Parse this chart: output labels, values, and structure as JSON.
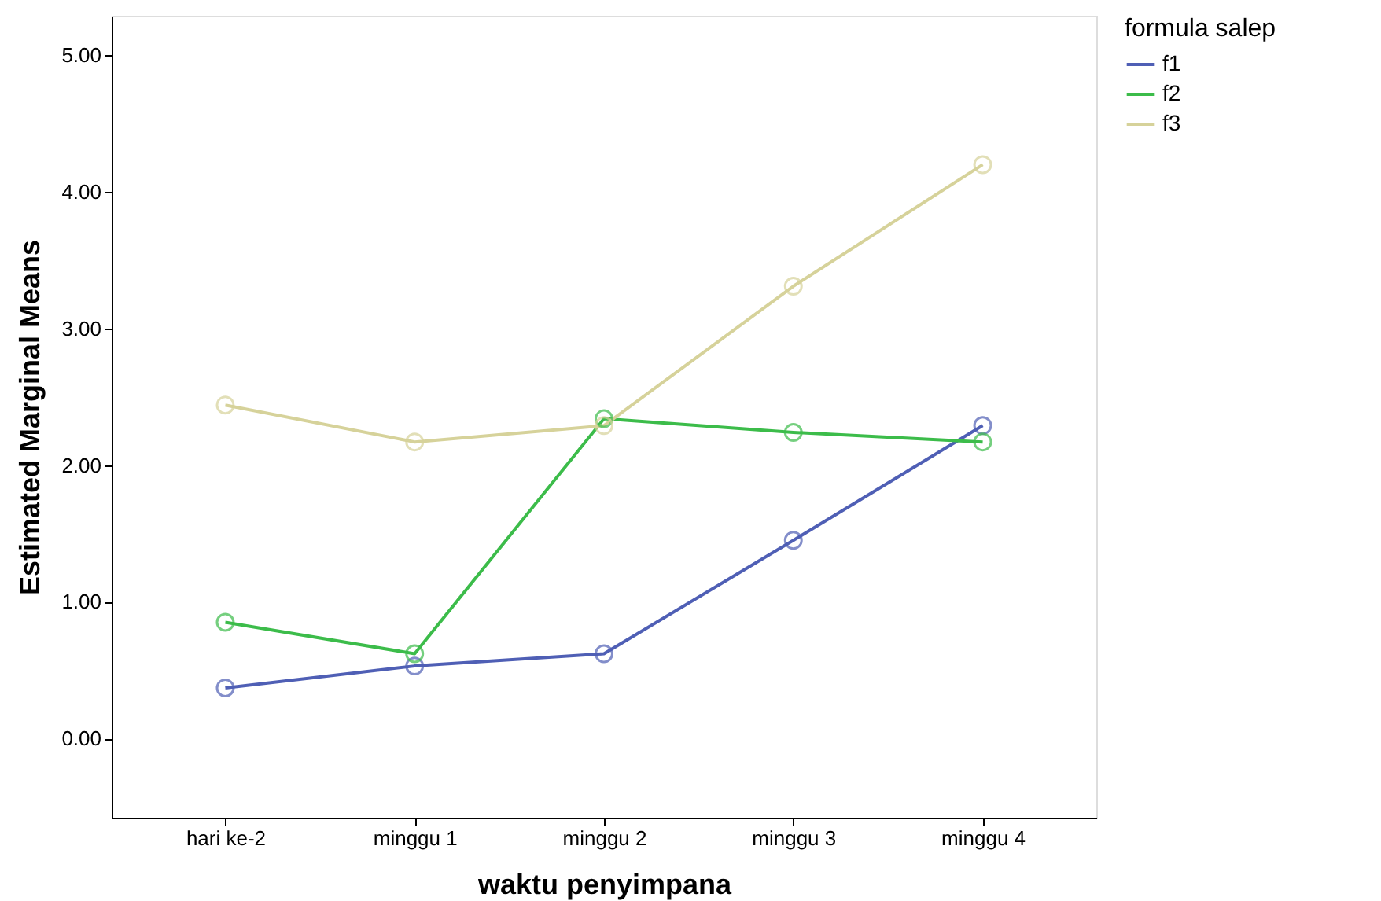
{
  "chart_data": {
    "type": "line",
    "xlabel": "waktu penyimpana",
    "ylabel": "Estimated Marginal Means",
    "legend_title": "formula salep",
    "categories": [
      "hari ke-2",
      "minggu 1",
      "minggu 2",
      "minggu 3",
      "minggu 4"
    ],
    "series": [
      {
        "name": "f1",
        "color": "#4f5fb5",
        "values": [
          0.37,
          0.53,
          0.62,
          1.45,
          2.29
        ]
      },
      {
        "name": "f2",
        "color": "#3cbc4a",
        "values": [
          0.85,
          0.62,
          2.34,
          2.24,
          2.17
        ]
      },
      {
        "name": "f3",
        "color": "#d6d29a",
        "values": [
          2.44,
          2.17,
          2.29,
          3.31,
          4.2
        ]
      }
    ],
    "ylim": [
      -0.58,
      5.29
    ],
    "yticks": [
      {
        "value": 0,
        "label": "0.00"
      },
      {
        "value": 1,
        "label": "1.00"
      },
      {
        "value": 2,
        "label": "2.00"
      },
      {
        "value": 3,
        "label": "3.00"
      },
      {
        "value": 4,
        "label": "4.00"
      },
      {
        "value": 5,
        "label": "5.00"
      }
    ],
    "grid": false,
    "legend": "top right",
    "marker": "circle",
    "line_style": "solid"
  }
}
